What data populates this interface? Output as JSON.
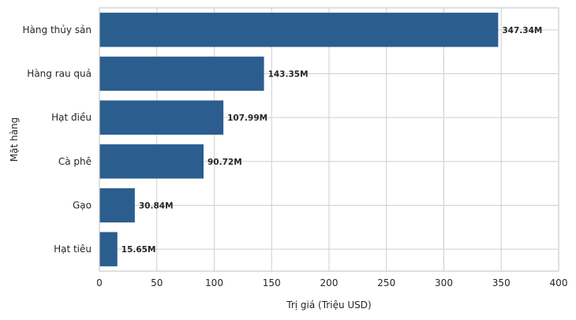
{
  "chart_data": {
    "type": "bar",
    "orientation": "horizontal",
    "categories": [
      "Hàng thủy sản",
      "Hàng rau quả",
      "Hạt điều",
      "Cà phê",
      "Gạo",
      "Hạt tiêu"
    ],
    "values": [
      347.34,
      143.35,
      107.99,
      90.72,
      30.84,
      15.65
    ],
    "data_labels": [
      "347.34M",
      "143.35M",
      "107.99M",
      "90.72M",
      "30.84M",
      "15.65M"
    ],
    "xlabel": "Trị giá (Triệu USD)",
    "ylabel": "Mặt hàng",
    "xlim": [
      0,
      400
    ],
    "xticks": [
      0,
      50,
      100,
      150,
      200,
      250,
      300,
      350,
      400
    ],
    "grid": true,
    "bar_color": "#2b5d8f"
  }
}
